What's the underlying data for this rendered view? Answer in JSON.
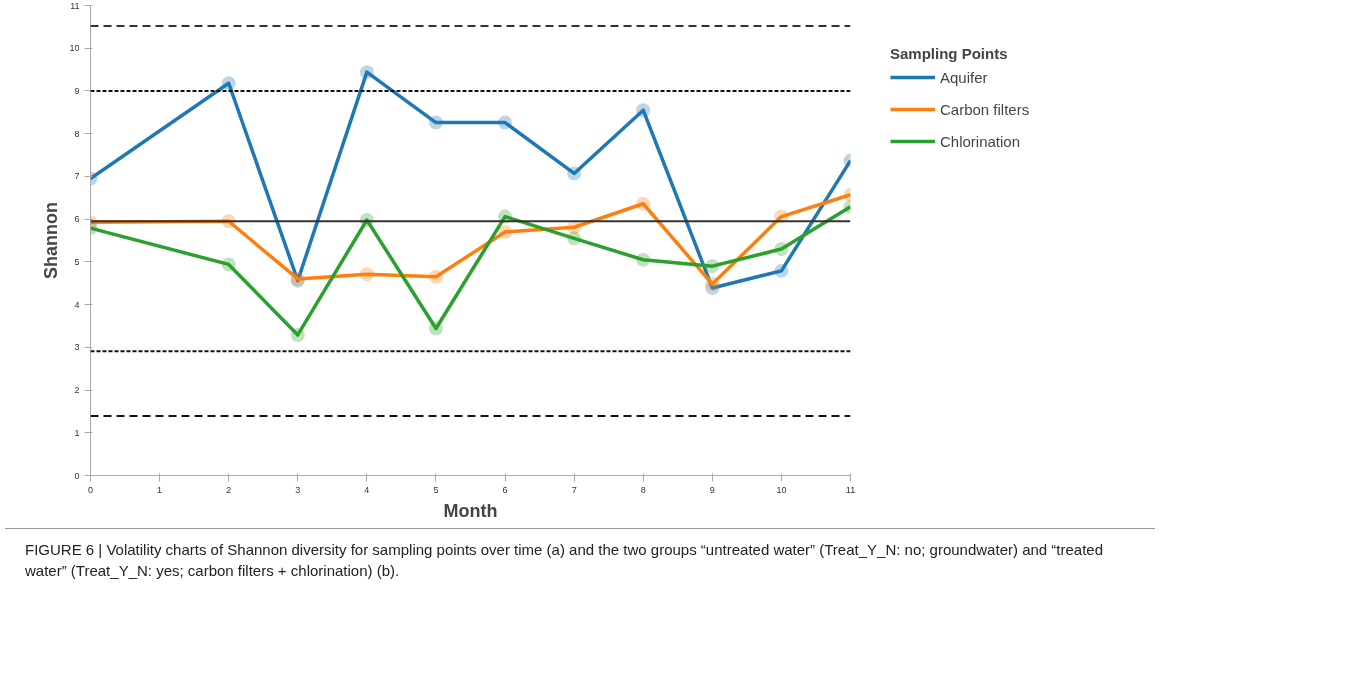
{
  "chart_data": {
    "type": "line",
    "xlabel": "Month",
    "ylabel": "Shannon",
    "legend_title": "Sampling Points",
    "x": [
      0,
      2,
      3,
      4,
      5,
      6,
      7,
      8,
      9,
      10,
      11
    ],
    "series": [
      {
        "name": "Aquifer",
        "color": "#1f77b4",
        "values": [
          6.95,
          9.18,
          4.56,
          9.44,
          8.26,
          8.26,
          7.07,
          8.55,
          4.39,
          4.79,
          7.37
        ]
      },
      {
        "name": "Carbon filters",
        "color": "#ff7f0e",
        "values": [
          5.93,
          5.95,
          4.6,
          4.71,
          4.65,
          5.7,
          5.81,
          6.36,
          4.48,
          6.06,
          6.57
        ]
      },
      {
        "name": "Chlorination",
        "color": "#2ca02c",
        "values": [
          5.79,
          4.94,
          3.29,
          5.98,
          3.44,
          6.06,
          5.55,
          5.05,
          4.9,
          5.3,
          6.29
        ]
      }
    ],
    "xlim": [
      0,
      11
    ],
    "xticks": [
      0,
      1,
      2,
      3,
      4,
      5,
      6,
      7,
      8,
      9,
      10,
      11
    ],
    "ylim": [
      0,
      11
    ],
    "yticks": [
      0,
      1,
      2,
      3,
      4,
      5,
      6,
      7,
      8,
      9,
      10,
      11
    ],
    "ref_lines": [
      {
        "axis": "y",
        "value": 10.52,
        "color": "#333333",
        "line_style": "dashed"
      },
      {
        "axis": "y",
        "value": 9.0,
        "color": "#111111",
        "line_style": "dotted"
      },
      {
        "axis": "y",
        "value": 5.95,
        "color": "#333333",
        "line_style": "solid"
      },
      {
        "axis": "y",
        "value": 2.91,
        "color": "#111111",
        "line_style": "dotted"
      },
      {
        "axis": "y",
        "value": 1.39,
        "color": "#111111",
        "line_style": "dashed"
      }
    ],
    "marker": "circle",
    "line_style": "solid",
    "grid": false,
    "legend": "top right",
    "annotations": [
      "FIGURE 6 | Volatility charts of Shannon diversity for sampling points over time (a) and the two groups “untreated water” (Treat_Y_N: no; groundwater) and “treated water” (Treat_Y_N: yes; carbon filters + chlorination) (b)."
    ]
  }
}
